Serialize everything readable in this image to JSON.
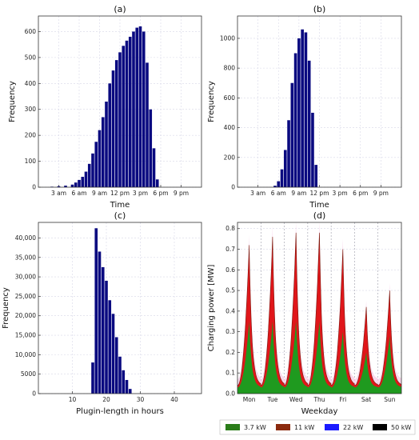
{
  "chart_data": [
    {
      "type": "bar",
      "panel_title": "(a)",
      "xlabel": "Time",
      "ylabel": "Frequency",
      "xticks": [
        "3 am",
        "6 am",
        "9 am",
        "12 pm",
        "3 pm",
        "6 pm",
        "9 pm"
      ],
      "yticks": [
        "0",
        "100",
        "200",
        "300",
        "400",
        "500",
        "600"
      ],
      "ylim": [
        0,
        660
      ],
      "x_hours": [
        2.0,
        3.0,
        4.0,
        5.0,
        5.5,
        6.0,
        6.5,
        7.0,
        7.5,
        8.0,
        8.5,
        9.0,
        9.5,
        10.0,
        10.5,
        11.0,
        11.5,
        12.0,
        12.5,
        13.0,
        13.5,
        14.0,
        14.5,
        15.0,
        15.5,
        16.0,
        16.5,
        17.0,
        17.5
      ],
      "values": [
        2,
        4,
        6,
        10,
        18,
        28,
        40,
        60,
        90,
        130,
        175,
        220,
        270,
        330,
        400,
        450,
        490,
        520,
        545,
        565,
        580,
        600,
        615,
        620,
        600,
        480,
        300,
        150,
        30
      ],
      "grid": true
    },
    {
      "type": "bar",
      "panel_title": "(b)",
      "xlabel": "Time",
      "ylabel": "Frequency",
      "xticks": [
        "3 am",
        "6 am",
        "9 am",
        "12 pm",
        "3 pm",
        "6 pm",
        "9 pm"
      ],
      "yticks": [
        "0",
        "200",
        "400",
        "600",
        "800",
        "1000"
      ],
      "ylim": [
        0,
        1150
      ],
      "x_hours": [
        5.5,
        6.0,
        6.5,
        7.0,
        7.5,
        8.0,
        8.5,
        9.0,
        9.5,
        10.0,
        10.5,
        11.0,
        11.5
      ],
      "values": [
        10,
        40,
        120,
        250,
        450,
        700,
        900,
        1000,
        1060,
        1040,
        850,
        500,
        150
      ],
      "grid": true
    },
    {
      "type": "bar",
      "panel_title": "(c)",
      "xlabel": "Plugin-length in hours",
      "ylabel": "Frequency",
      "xticks": [
        "10",
        "20",
        "30",
        "40"
      ],
      "yticks": [
        "0",
        "5000",
        "10,000",
        "15,000",
        "20,000",
        "25,000",
        "30,000",
        "35,000",
        "40,000"
      ],
      "ylim": [
        0,
        44000
      ],
      "x": [
        16,
        17,
        18,
        19,
        20,
        21,
        22,
        23,
        24,
        25,
        26,
        27
      ],
      "values": [
        8000,
        42500,
        36500,
        32500,
        29000,
        24000,
        20500,
        14500,
        9500,
        6000,
        3500,
        1200
      ],
      "grid": true
    },
    {
      "type": "area",
      "panel_title": "(d)",
      "xlabel": "Weekday",
      "ylabel": "Charging power [MW]",
      "categories": [
        "Mon",
        "Tue",
        "Wed",
        "Thu",
        "Fri",
        "Sat",
        "Sun"
      ],
      "yticks": [
        "0.0",
        "0.1",
        "0.2",
        "0.3",
        "0.4",
        "0.5",
        "0.6",
        "0.7",
        "0.8"
      ],
      "ylim": [
        0,
        0.83
      ],
      "daily_peaks_total": [
        0.72,
        0.76,
        0.78,
        0.78,
        0.7,
        0.42,
        0.5
      ],
      "daily_peaks_3_7kW": [
        0.35,
        0.35,
        0.35,
        0.35,
        0.3,
        0.2,
        0.28
      ],
      "series": [
        {
          "name": "3.7 kW",
          "color": "#2b7d1a"
        },
        {
          "name": "11 kW",
          "color": "#8b2a0e"
        },
        {
          "name": "22 kW",
          "color": "#1a1aff"
        },
        {
          "name": "50 kW",
          "color": "#000000"
        }
      ],
      "grid": true,
      "legend_position": "bottom"
    }
  ]
}
